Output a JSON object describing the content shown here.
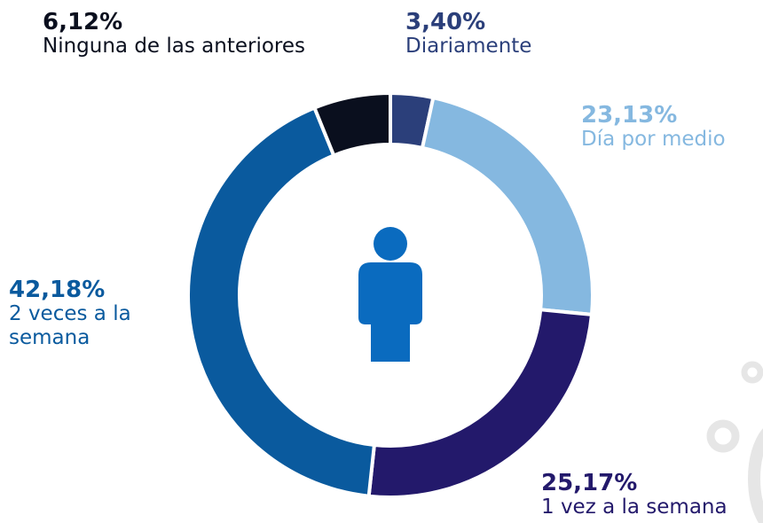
{
  "chart_data": {
    "type": "donut",
    "categories": [
      "Diariamente",
      "Día por medio",
      "1 vez a la semana",
      "2 veces a la semana",
      "Ninguna de las anteriores"
    ],
    "values": [
      3.4,
      23.13,
      25.17,
      42.18,
      6.12
    ],
    "value_labels": [
      "3,40%",
      "23,13%",
      "25,17%",
      "42,18%",
      "6,12%"
    ],
    "colors": [
      "#2b3f7a",
      "#85b8e0",
      "#23196b",
      "#0a5a9e",
      "#0a0f1e"
    ]
  }
}
